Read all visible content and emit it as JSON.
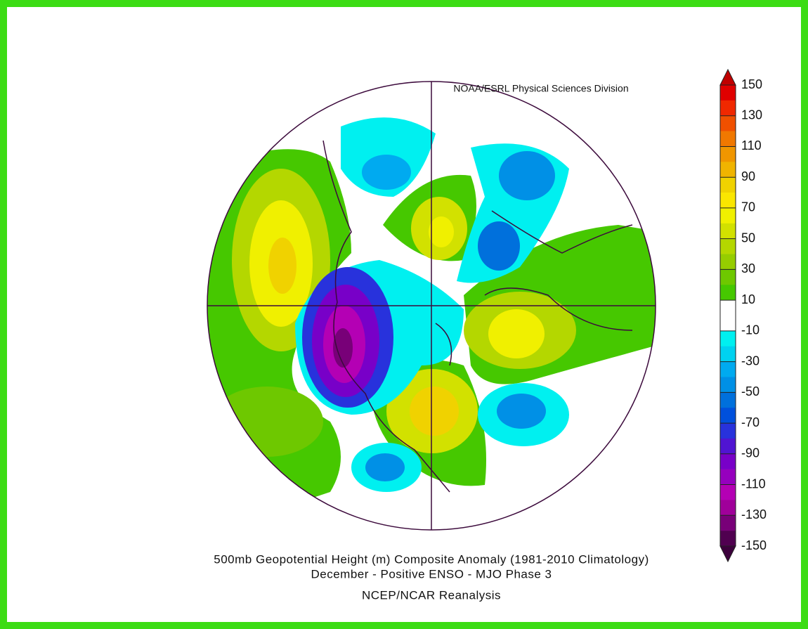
{
  "header": {
    "credit": "NOAA/ESRL Physical Sciences Division"
  },
  "colorbar": {
    "labels": [
      "150",
      "130",
      "110",
      "90",
      "70",
      "50",
      "30",
      "10",
      "-10",
      "-30",
      "-50",
      "-70",
      "-90",
      "-110",
      "-130",
      "-150"
    ],
    "over_color": "#c00000",
    "under_color": "#3c003c",
    "colors": [
      "#e00000",
      "#f02800",
      "#f05000",
      "#f07800",
      "#f09600",
      "#f0b400",
      "#f0d200",
      "#fae600",
      "#f0f000",
      "#d2e100",
      "#b4d700",
      "#96cd00",
      "#6ec800",
      "#46c800",
      "#ffffff",
      "#ffffff",
      "#00f0f0",
      "#00d2f0",
      "#00aaf0",
      "#0090e6",
      "#0070dc",
      "#0050dc",
      "#2832dc",
      "#5014d2",
      "#7800c8",
      "#9600be",
      "#b400b4",
      "#a0009a",
      "#780078",
      "#500050"
    ]
  },
  "caption": {
    "title": "500mb Geopotential Height (m) Composite Anomaly (1981-2010 Climatology)",
    "subtitle": "December - Positive ENSO - MJO Phase 3",
    "source": "NCEP/NCAR Reanalysis"
  }
}
